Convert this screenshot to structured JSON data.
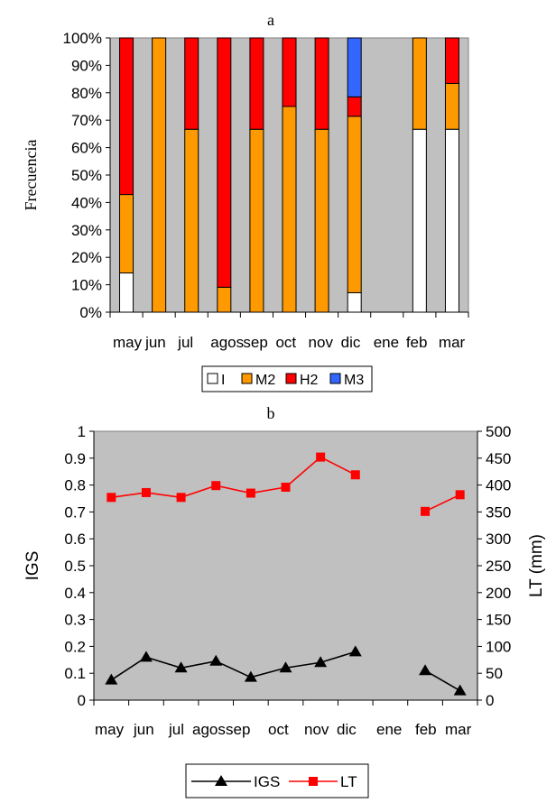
{
  "chart_data": [
    {
      "type": "bar",
      "stacked": true,
      "percent": true,
      "title": "a",
      "ylabel": "Frecuencia",
      "xlabel": "",
      "ylim": [
        0,
        100
      ],
      "yticks": [
        "0%",
        "10%",
        "20%",
        "30%",
        "40%",
        "50%",
        "60%",
        "70%",
        "80%",
        "90%",
        "100%"
      ],
      "categories": [
        "may",
        "jun",
        "jul",
        "agos",
        "sep",
        "oct",
        "nov",
        "dic",
        "ene",
        "feb",
        "mar"
      ],
      "series": [
        {
          "name": "I",
          "color": "#ffffff",
          "values": [
            14.3,
            0,
            0,
            0,
            0,
            0,
            0,
            7.1,
            0,
            66.7,
            66.7
          ]
        },
        {
          "name": "M2",
          "color": "#ff9900",
          "values": [
            28.6,
            100,
            66.7,
            9.1,
            66.7,
            75,
            66.7,
            64.3,
            0,
            33.3,
            16.7
          ]
        },
        {
          "name": "H2",
          "color": "#ff0000",
          "values": [
            57.1,
            0,
            33.3,
            90.9,
            33.3,
            25,
            33.3,
            7.1,
            0,
            0,
            16.6
          ]
        },
        {
          "name": "M3",
          "color": "#3366ff",
          "values": [
            0,
            0,
            0,
            0,
            0,
            0,
            0,
            21.5,
            0,
            0,
            0
          ]
        }
      ],
      "grid": false,
      "background": "#c0c0c0",
      "legend_position": "bottom"
    },
    {
      "type": "line",
      "title": "b",
      "categories": [
        "may",
        "jun",
        "jul",
        "agos",
        "sep",
        "oct",
        "nov",
        "dic",
        "ene",
        "feb",
        "mar"
      ],
      "ylabel": "IGS",
      "y2label": "LT (mm)",
      "ylim": [
        0,
        1
      ],
      "y2lim": [
        0,
        500
      ],
      "yticks": [
        "0",
        "0.1",
        "0.2",
        "0.3",
        "0.4",
        "0.5",
        "0.6",
        "0.7",
        "0.8",
        "0.9",
        "1"
      ],
      "y2ticks": [
        "0",
        "50",
        "100",
        "150",
        "200",
        "250",
        "300",
        "350",
        "400",
        "450",
        "500"
      ],
      "series": [
        {
          "name": "IGS",
          "axis": "left",
          "color": "#000000",
          "marker": "triangle",
          "x": [
            0.5,
            1.5,
            2.5,
            3.5,
            4.5,
            5.5,
            6.5,
            7.5,
            9.5,
            10.5
          ],
          "values": [
            0.075,
            0.16,
            0.12,
            0.145,
            0.085,
            0.12,
            0.14,
            0.18,
            0.11,
            0.035
          ]
        },
        {
          "name": "LT",
          "axis": "right",
          "color": "#ff0000",
          "marker": "square",
          "x": [
            0.5,
            1.5,
            2.5,
            3.5,
            4.5,
            5.5,
            6.5,
            7.5,
            9.5,
            10.5
          ],
          "values": [
            377,
            386,
            377,
            399,
            385,
            396,
            452,
            419,
            351,
            382
          ]
        }
      ],
      "grid": false,
      "background": "#c0c0c0",
      "legend_position": "bottom"
    }
  ]
}
